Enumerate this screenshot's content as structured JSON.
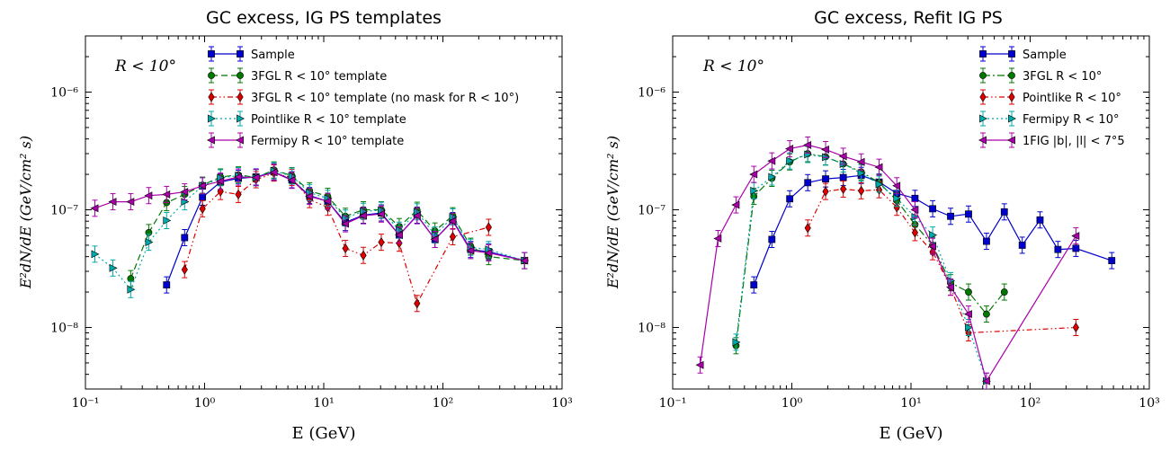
{
  "panels": [
    {
      "title": "GC excess, IG PS templates",
      "xlabel": "E (GeV)",
      "ylabel": "E²dN/dE (GeV/cm² s)",
      "annotation": "R < 10°",
      "xscale": "log",
      "yscale": "log",
      "xlim": [
        0.1,
        1000
      ],
      "ylim": [
        3e-09,
        3e-06
      ],
      "xticks": [
        "10⁻¹",
        "10⁰",
        "10¹",
        "10²",
        "10³"
      ],
      "yticks": [
        "10⁻⁸",
        "10⁻⁷",
        "10⁻⁶"
      ],
      "legend_position": "top-right",
      "series": [
        {
          "name": "Sample",
          "color": "#0000cc",
          "marker": "square",
          "dash": "",
          "x": [
            0.48,
            0.68,
            0.96,
            1.36,
            1.92,
            2.7,
            3.82,
            5.4,
            7.6,
            10.8,
            15.2,
            21.5,
            30.4,
            43,
            60.7,
            85.8,
            121,
            171,
            242,
            484
          ],
          "y": [
            2.3e-08,
            5.8e-08,
            1.28e-07,
            1.72e-07,
            1.85e-07,
            1.9e-07,
            2.1e-07,
            1.8e-07,
            1.32e-07,
            1.18e-07,
            7.8e-08,
            9e-08,
            9.4e-08,
            6.1e-08,
            9e-08,
            5.6e-08,
            8.1e-08,
            4.6e-08,
            4.4e-08,
            3.7e-08
          ]
        },
        {
          "name": "3FGL R < 10° template",
          "color": "#007700",
          "marker": "circle",
          "dash": "7,4",
          "x": [
            0.24,
            0.34,
            0.48,
            0.68,
            0.96,
            1.36,
            1.92,
            2.7,
            3.82,
            5.4,
            7.6,
            10.8,
            15.2,
            21.5,
            30.4,
            43,
            60.7,
            85.8,
            121,
            171,
            242,
            484
          ],
          "y": [
            2.6e-08,
            6.4e-08,
            1.15e-07,
            1.35e-07,
            1.62e-07,
            1.9e-07,
            1.98e-07,
            1.88e-07,
            2.18e-07,
            1.95e-07,
            1.45e-07,
            1.3e-07,
            8.8e-08,
            1e-07,
            1e-07,
            7.2e-08,
            9.9e-08,
            6.6e-08,
            8.9e-08,
            4.9e-08,
            4e-08,
            3.7e-08
          ]
        },
        {
          "name": "3FGL R < 10° template (no mask for R < 10°)",
          "color": "#dd0000",
          "marker": "diamond",
          "dash": "6,3,1.5,3,1.5,3",
          "x": [
            0.68,
            0.96,
            1.36,
            1.92,
            2.7,
            3.82,
            5.4,
            7.6,
            10.8,
            15.2,
            21.5,
            30.4,
            43,
            60.7,
            121,
            242
          ],
          "y": [
            3.1e-08,
            1.02e-07,
            1.43e-07,
            1.35e-07,
            1.8e-07,
            2.05e-07,
            1.88e-07,
            1.22e-07,
            1.05e-07,
            4.7e-08,
            4.1e-08,
            5.3e-08,
            5.2e-08,
            1.6e-08,
            5.9e-08,
            7.1e-08
          ]
        },
        {
          "name": "Pointlike R < 10° template",
          "color": "#00aaaa",
          "marker": "triangle-right",
          "dash": "2,3",
          "x": [
            0.12,
            0.17,
            0.24,
            0.34,
            0.48,
            0.68,
            0.96,
            1.36,
            1.92,
            2.7,
            3.82,
            5.4,
            7.6,
            10.8,
            15.2,
            21.5,
            30.4,
            43,
            60.7,
            85.8,
            121,
            171,
            242,
            484
          ],
          "y": [
            4.2e-08,
            3.2e-08,
            2.1e-08,
            5.3e-08,
            8.1e-08,
            1.17e-07,
            1.6e-07,
            1.87e-07,
            1.95e-07,
            1.87e-07,
            2.15e-07,
            1.93e-07,
            1.4e-07,
            1.25e-07,
            8.5e-08,
            9.7e-08,
            9.9e-08,
            6.7e-08,
            9.6e-08,
            6.1e-08,
            8.7e-08,
            4.8e-08,
            4.6e-08,
            3.7e-08
          ]
        },
        {
          "name": "Fermipy R < 10° template",
          "color": "#aa00aa",
          "marker": "triangle-left",
          "dash": "",
          "x": [
            0.12,
            0.17,
            0.24,
            0.34,
            0.48,
            0.68,
            0.96,
            1.36,
            1.92,
            2.7,
            3.82,
            5.4,
            7.6,
            10.8,
            15.2,
            21.5,
            30.4,
            43,
            60.7,
            85.8,
            121,
            171,
            242,
            484
          ],
          "y": [
            1.03e-07,
            1.17e-07,
            1.17e-07,
            1.32e-07,
            1.35e-07,
            1.42e-07,
            1.6e-07,
            1.75e-07,
            1.9e-07,
            1.88e-07,
            2.08e-07,
            1.78e-07,
            1.3e-07,
            1.18e-07,
            7.6e-08,
            8.9e-08,
            9.2e-08,
            6.1e-08,
            8.9e-08,
            5.6e-08,
            8e-08,
            4.5e-08,
            4.3e-08,
            3.7e-08
          ]
        }
      ]
    },
    {
      "title": "GC excess, Refit IG PS",
      "xlabel": "E (GeV)",
      "ylabel": "E²dN/dE (GeV/cm² s)",
      "annotation": "R < 10°",
      "xscale": "log",
      "yscale": "log",
      "xlim": [
        0.1,
        1000
      ],
      "ylim": [
        3e-09,
        3e-06
      ],
      "xticks": [
        "10⁻¹",
        "10⁰",
        "10¹",
        "10²",
        "10³"
      ],
      "yticks": [
        "10⁻⁸",
        "10⁻⁷",
        "10⁻⁶"
      ],
      "legend_position": "top-right",
      "series": [
        {
          "name": "Sample",
          "color": "#0000cc",
          "marker": "square",
          "dash": "",
          "x": [
            0.48,
            0.68,
            0.96,
            1.36,
            1.92,
            2.7,
            3.82,
            5.4,
            7.6,
            10.8,
            15.2,
            21.5,
            30.4,
            43,
            60.7,
            85.8,
            121,
            171,
            242,
            484
          ],
          "y": [
            2.3e-08,
            5.6e-08,
            1.24e-07,
            1.7e-07,
            1.83e-07,
            1.88e-07,
            1.96e-07,
            1.72e-07,
            1.38e-07,
            1.25e-07,
            1.02e-07,
            8.8e-08,
            9.2e-08,
            5.4e-08,
            9.6e-08,
            5e-08,
            8.2e-08,
            4.6e-08,
            4.7e-08,
            3.7e-08
          ]
        },
        {
          "name": "3FGL R < 10°",
          "color": "#007700",
          "marker": "circle",
          "dash": "8,3,2,3",
          "x": [
            0.34,
            0.48,
            0.68,
            0.96,
            1.36,
            1.92,
            2.7,
            3.82,
            5.4,
            7.6,
            10.8,
            15.2,
            21.5,
            30.4,
            43,
            60.7
          ],
          "y": [
            7e-09,
            1.3e-07,
            1.85e-07,
            2.55e-07,
            3e-07,
            2.82e-07,
            2.45e-07,
            2.1e-07,
            1.7e-07,
            1.2e-07,
            7.5e-08,
            5e-08,
            2.4e-08,
            2e-08,
            1.3e-08,
            2e-08
          ]
        },
        {
          "name": "Pointlike R < 10°",
          "color": "#dd0000",
          "marker": "diamond",
          "dash": "6,3,1.5,3,1.5,3",
          "x": [
            1.36,
            1.92,
            2.7,
            3.82,
            5.4,
            7.6,
            10.8,
            15.2,
            21.5,
            30.4,
            242
          ],
          "y": [
            7e-08,
            1.43e-07,
            1.5e-07,
            1.45e-07,
            1.48e-07,
            1.05e-07,
            6.4e-08,
            4.4e-08,
            2.2e-08,
            9e-09,
            1e-08
          ]
        },
        {
          "name": "Fermipy R < 10°",
          "color": "#00aaaa",
          "marker": "triangle-right",
          "dash": "2,3",
          "x": [
            0.34,
            0.48,
            0.68,
            0.96,
            1.36,
            1.92,
            2.7,
            3.82,
            5.4,
            7.6,
            10.8,
            15.2,
            21.5,
            30.4,
            43
          ],
          "y": [
            7.5e-09,
            1.45e-07,
            1.9e-07,
            2.6e-07,
            2.95e-07,
            2.8e-07,
            2.45e-07,
            2.05e-07,
            1.65e-07,
            1.25e-07,
            8.7e-08,
            6.1e-08,
            2.5e-08,
            1e-08,
            3.5e-09
          ]
        },
        {
          "name": "1FIG |b|, |l| < 7°5",
          "color": "#aa00aa",
          "marker": "triangle-left",
          "dash": "",
          "x": [
            0.17,
            0.24,
            0.34,
            0.48,
            0.68,
            0.96,
            1.36,
            1.92,
            2.7,
            3.82,
            5.4,
            7.6,
            10.8,
            15.2,
            21.5,
            30.4,
            43,
            242
          ],
          "y": [
            4.8e-09,
            5.7e-08,
            1.1e-07,
            2e-07,
            2.6e-07,
            3.3e-07,
            3.55e-07,
            3.25e-07,
            2.85e-07,
            2.55e-07,
            2.3e-07,
            1.6e-07,
            1e-07,
            4.9e-08,
            2.2e-08,
            1.3e-08,
            3.5e-09,
            6e-08
          ]
        }
      ]
    }
  ]
}
